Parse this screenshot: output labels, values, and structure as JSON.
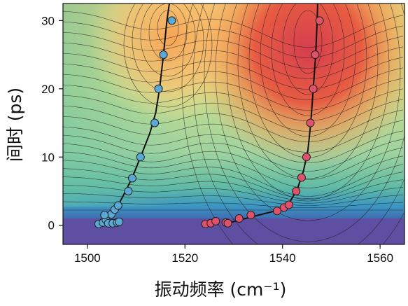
{
  "chart_data": {
    "type": "scatter",
    "title": "",
    "xlabel": "振动频率 (cm⁻¹)",
    "ylabel": "间时 (ps)",
    "xlim": [
      1495,
      1565
    ],
    "ylim": [
      -2.8,
      32.5
    ],
    "x_ticks": [
      1500,
      1520,
      1540,
      1560
    ],
    "y_ticks": [
      0,
      10,
      20,
      30
    ],
    "x_tick_labels": [
      "1500",
      "1520",
      "1540",
      "1560"
    ],
    "y_tick_labels": [
      "0",
      "10",
      "20",
      "30"
    ],
    "background": "filled contour map (spectral colormap) with black contour lines",
    "colormap": [
      "#5e4fa2",
      "#3288bd",
      "#66c2a5",
      "#abdda4",
      "#e6f598",
      "#fee08b",
      "#fdae61",
      "#f46d43",
      "#d53e4f"
    ],
    "series": [
      {
        "color": "#5aa9d6",
        "points": [
          [
            1502.3,
            0.2
          ],
          [
            1503.2,
            0.4
          ],
          [
            1503.8,
            0.8
          ],
          [
            1504.3,
            0.3
          ],
          [
            1504.9,
            1.6
          ],
          [
            1505.2,
            0.3
          ],
          [
            1505.6,
            2.3
          ],
          [
            1506.1,
            0.4
          ],
          [
            1506.3,
            2.9
          ],
          [
            1506.5,
            0.5
          ],
          [
            1503.5,
            1.5
          ],
          [
            1508.4,
            5.0
          ],
          [
            1509.2,
            6.9
          ],
          [
            1510.9,
            10.0
          ],
          [
            1513.8,
            15.0
          ],
          [
            1514.6,
            20.0
          ],
          [
            1515.6,
            25.0
          ],
          [
            1517.3,
            30.0
          ]
        ],
        "fit_line": [
          [
            1503.0,
            0.3
          ],
          [
            1504.6,
            1.2
          ],
          [
            1506.2,
            2.8
          ],
          [
            1507.7,
            4.8
          ],
          [
            1509.2,
            7.0
          ],
          [
            1510.9,
            10.0
          ],
          [
            1512.8,
            13.5
          ],
          [
            1514.0,
            16.5
          ],
          [
            1514.8,
            20.0
          ],
          [
            1515.6,
            25.0
          ],
          [
            1516.3,
            30.0
          ],
          [
            1516.8,
            32.5
          ]
        ]
      },
      {
        "color": "#e0516a",
        "points": [
          [
            1524.2,
            0.2
          ],
          [
            1525.3,
            0.3
          ],
          [
            1526.3,
            0.6
          ],
          [
            1528.4,
            0.4
          ],
          [
            1528.8,
            0.3
          ],
          [
            1531.1,
            1.0
          ],
          [
            1533.5,
            1.5
          ],
          [
            1538.9,
            2.1
          ],
          [
            1540.3,
            2.6
          ],
          [
            1541.3,
            3.0
          ],
          [
            1542.8,
            5.0
          ],
          [
            1543.9,
            7.0
          ],
          [
            1544.9,
            10.0
          ],
          [
            1545.7,
            15.0
          ],
          [
            1546.3,
            20.0
          ],
          [
            1546.7,
            25.0
          ],
          [
            1547.6,
            30.0
          ]
        ],
        "fit_line": [
          [
            1528.5,
            0.25
          ],
          [
            1533.5,
            1.2
          ],
          [
            1538.5,
            2.1
          ],
          [
            1541.3,
            3.2
          ],
          [
            1543.0,
            5.2
          ],
          [
            1544.3,
            8.0
          ],
          [
            1545.2,
            11.0
          ],
          [
            1545.8,
            15.0
          ],
          [
            1546.3,
            20.0
          ],
          [
            1546.8,
            25.0
          ],
          [
            1547.1,
            30.0
          ],
          [
            1547.2,
            32.5
          ]
        ]
      }
    ]
  }
}
